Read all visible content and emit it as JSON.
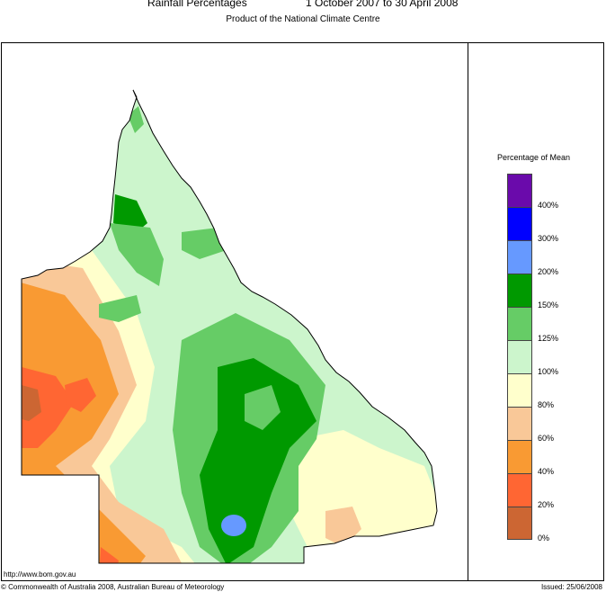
{
  "header": {
    "title": "Rainfall Percentages",
    "period": "1 October 2007 to 30 April 2008",
    "subtitle": "Product of the National Climate Centre"
  },
  "legend": {
    "title": "Percentage of Mean",
    "classes": [
      {
        "color": "#6a0aab",
        "label": "400%"
      },
      {
        "color": "#0000ff",
        "label": "300%"
      },
      {
        "color": "#6699ff",
        "label": "200%"
      },
      {
        "color": "#009900",
        "label": "150%"
      },
      {
        "color": "#66cc66",
        "label": "125%"
      },
      {
        "color": "#ccf5cc",
        "label": "100%"
      },
      {
        "color": "#ffffcc",
        "label": "80%"
      },
      {
        "color": "#f9c898",
        "label": "60%"
      },
      {
        "color": "#f99a33",
        "label": "40%"
      },
      {
        "color": "#ff6633",
        "label": "20%"
      },
      {
        "color": "#cc6633",
        "label": "0%"
      }
    ]
  },
  "footer": {
    "url": "http://www.bom.gov.au",
    "copyright": "© Commonwealth of Australia 2008, Australian Bureau of Meteorology",
    "issued": "Issued: 25/06/2008"
  }
}
